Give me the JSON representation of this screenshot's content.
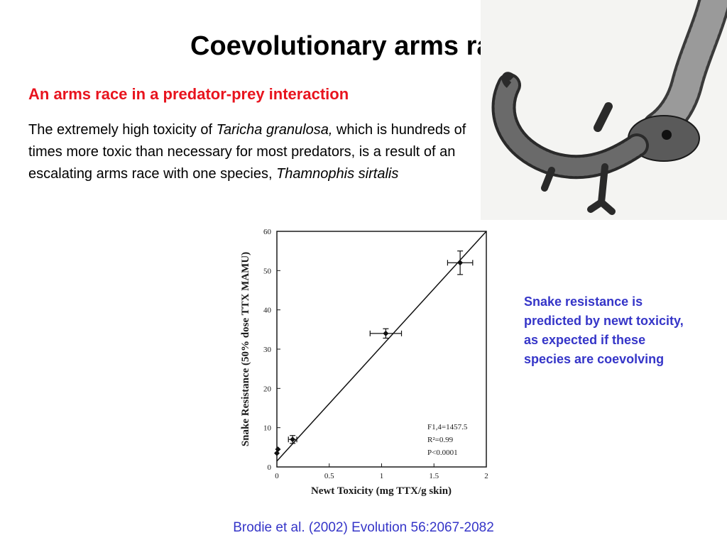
{
  "slide": {
    "title": "Coevolutionary arms races",
    "subtitle": "An arms race in a predator-prey interaction",
    "body": {
      "part1": "The extremely high toxicity of ",
      "species1": "Taricha granulosa,",
      "part2": " which is hundreds of times more toxic than necessary for most predators, is a result of an escalating arms race with one species, ",
      "species2": "Thamnophis sirtalis"
    },
    "note": "Snake resistance is predicted by newt toxicity, as expected if these species are coevolving",
    "citation": "Brodie et al. (2002) Evolution 56:2067-2082",
    "illustration_icon": "garter-snake-eating-newt-drawing"
  },
  "chart_data": {
    "type": "scatter",
    "xlabel": "Newt Toxicity (mg TTX/g skin)",
    "ylabel": "Snake Resistance (50% dose TTX MAMU)",
    "xlim": [
      0,
      2
    ],
    "ylim": [
      0,
      60
    ],
    "x_ticks": [
      "0",
      "0.5",
      "1",
      "1.5",
      "2"
    ],
    "y_ticks": [
      "0",
      "10",
      "20",
      "30",
      "40",
      "50",
      "60"
    ],
    "points": [
      {
        "x": 0.0,
        "y": 3.5,
        "xerr": 0,
        "yerr": 0
      },
      {
        "x": 0.01,
        "y": 4.5,
        "xerr": 0,
        "yerr": 0
      },
      {
        "x": 0.15,
        "y": 7,
        "xerr": 0.04,
        "yerr": 1
      },
      {
        "x": 1.04,
        "y": 34,
        "xerr": 0.15,
        "yerr": 1.2
      },
      {
        "x": 1.75,
        "y": 52,
        "xerr": 0.12,
        "yerr": 3
      }
    ],
    "fit_line": {
      "x": [
        0,
        2
      ],
      "y": [
        1.5,
        60
      ]
    },
    "stats": [
      "F1,4=1457.5",
      "R²=0.99",
      "P<0.0001"
    ],
    "grid": false
  }
}
